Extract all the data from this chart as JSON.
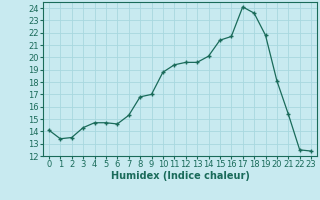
{
  "x": [
    0,
    1,
    2,
    3,
    4,
    5,
    6,
    7,
    8,
    9,
    10,
    11,
    12,
    13,
    14,
    15,
    16,
    17,
    18,
    19,
    20,
    21,
    22,
    23
  ],
  "y": [
    14.1,
    13.4,
    13.5,
    14.3,
    14.7,
    14.7,
    14.6,
    15.3,
    16.8,
    17.0,
    18.8,
    19.4,
    19.6,
    19.6,
    20.1,
    21.4,
    21.7,
    24.1,
    23.6,
    21.8,
    18.1,
    15.4,
    12.5,
    12.4
  ],
  "xlabel": "Humidex (Indice chaleur)",
  "xlim": [
    -0.5,
    23.5
  ],
  "ylim": [
    12,
    24.5
  ],
  "yticks": [
    12,
    13,
    14,
    15,
    16,
    17,
    18,
    19,
    20,
    21,
    22,
    23,
    24
  ],
  "xticks": [
    0,
    1,
    2,
    3,
    4,
    5,
    6,
    7,
    8,
    9,
    10,
    11,
    12,
    13,
    14,
    15,
    16,
    17,
    18,
    19,
    20,
    21,
    22,
    23
  ],
  "line_color": "#1a6b5a",
  "marker": "+",
  "bg_color": "#c8eaf0",
  "grid_color": "#a8d8df",
  "label_fontsize": 7,
  "tick_fontsize": 6
}
